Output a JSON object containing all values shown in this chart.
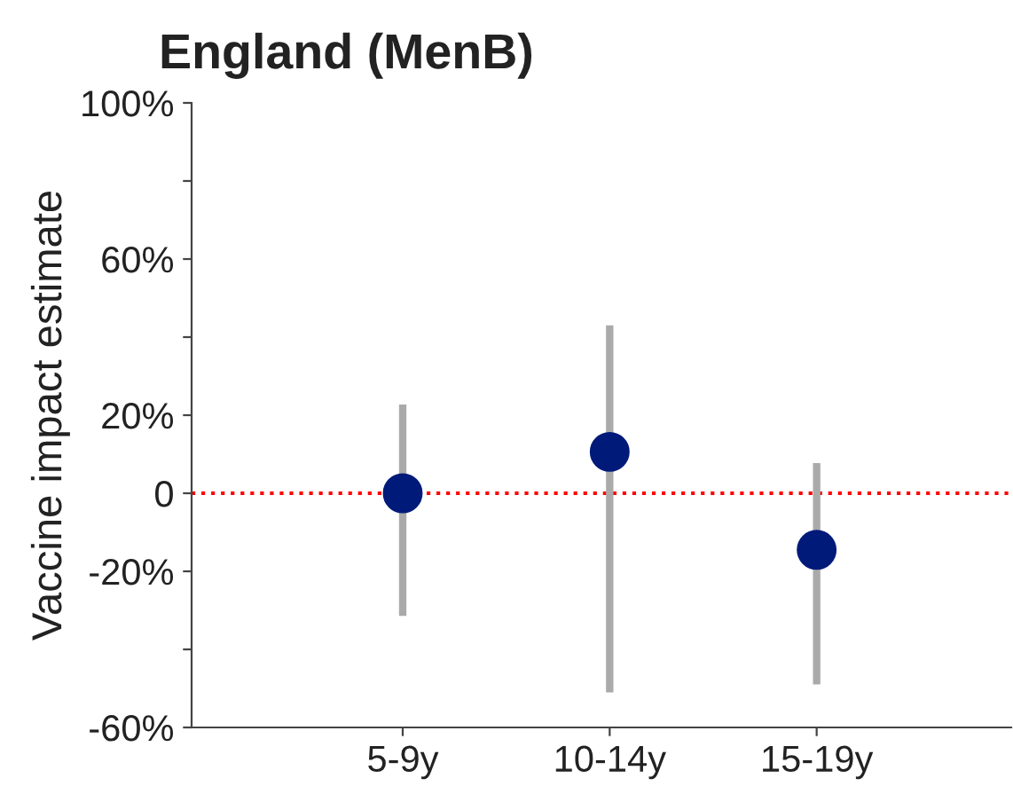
{
  "chart_data": {
    "type": "scatter",
    "title": "England (MenB)",
    "ylabel": "Vaccine impact estimate",
    "categories": [
      "5-9y",
      "10-14y",
      "15-19y"
    ],
    "series": [
      {
        "color": "#001a7a",
        "values": [
          0,
          10.6,
          -14.5
        ],
        "errors": [
          [
            -31.4,
            22.7
          ],
          [
            -51,
            43
          ],
          [
            -49,
            7.7
          ]
        ]
      }
    ],
    "ylim": [
      -60,
      100
    ],
    "yticks": [
      {
        "value": -60,
        "label": "-60%"
      },
      {
        "value": -40,
        "label": null
      },
      {
        "value": -20,
        "label": "-20%"
      },
      0,
      {
        "value": 20,
        "label": "20%"
      },
      {
        "value": 40,
        "label": null
      },
      {
        "value": 60,
        "label": "60%"
      },
      {
        "value": 80,
        "label": null
      },
      {
        "value": 100,
        "label": "100%"
      }
    ],
    "ref_lines": [
      {
        "axis": "y",
        "value": 0,
        "color": "#ff0000",
        "line_style": "dotted"
      }
    ],
    "marker": "circle",
    "grid": false,
    "legend": false
  }
}
